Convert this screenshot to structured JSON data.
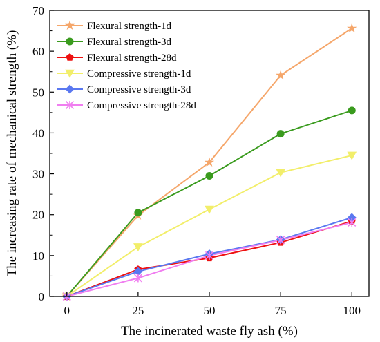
{
  "chart_data": {
    "type": "line",
    "xlabel": "The incinerated waste fly ash (%)",
    "ylabel": "The increasing rate of mechanical strength (%)",
    "x": [
      0,
      25,
      50,
      75,
      100
    ],
    "xticks": [
      0,
      25,
      50,
      75,
      100
    ],
    "yticks": [
      0,
      10,
      20,
      30,
      40,
      50,
      60,
      70
    ],
    "xlim": [
      -6,
      106
    ],
    "ylim": [
      0,
      70
    ],
    "grid": false,
    "legend_position": "top-left",
    "series": [
      {
        "name": "Flexural strength-1d",
        "values": [
          0,
          19.8,
          32.8,
          54.1,
          65.6
        ],
        "color": "#F5A66A",
        "marker": "star"
      },
      {
        "name": "Flexural strength-3d",
        "values": [
          0,
          20.5,
          29.5,
          39.8,
          45.5
        ],
        "color": "#3A9B1E",
        "marker": "circle"
      },
      {
        "name": "Flexural strength-28d",
        "values": [
          0,
          6.6,
          9.4,
          13.2,
          18.4
        ],
        "color": "#EE1111",
        "marker": "pentagon"
      },
      {
        "name": "Compressive strength-1d",
        "values": [
          0,
          12.1,
          21.3,
          30.3,
          34.5
        ],
        "color": "#F2EE6A",
        "marker": "triangle-down"
      },
      {
        "name": "Compressive strength-3d",
        "values": [
          0,
          6.1,
          10.4,
          13.9,
          19.3
        ],
        "color": "#5A78F0",
        "marker": "diamond"
      },
      {
        "name": "Compressive strength-28d",
        "values": [
          0,
          4.5,
          10.0,
          13.8,
          18.1
        ],
        "color": "#F07EF0",
        "marker": "asterisk"
      }
    ]
  }
}
